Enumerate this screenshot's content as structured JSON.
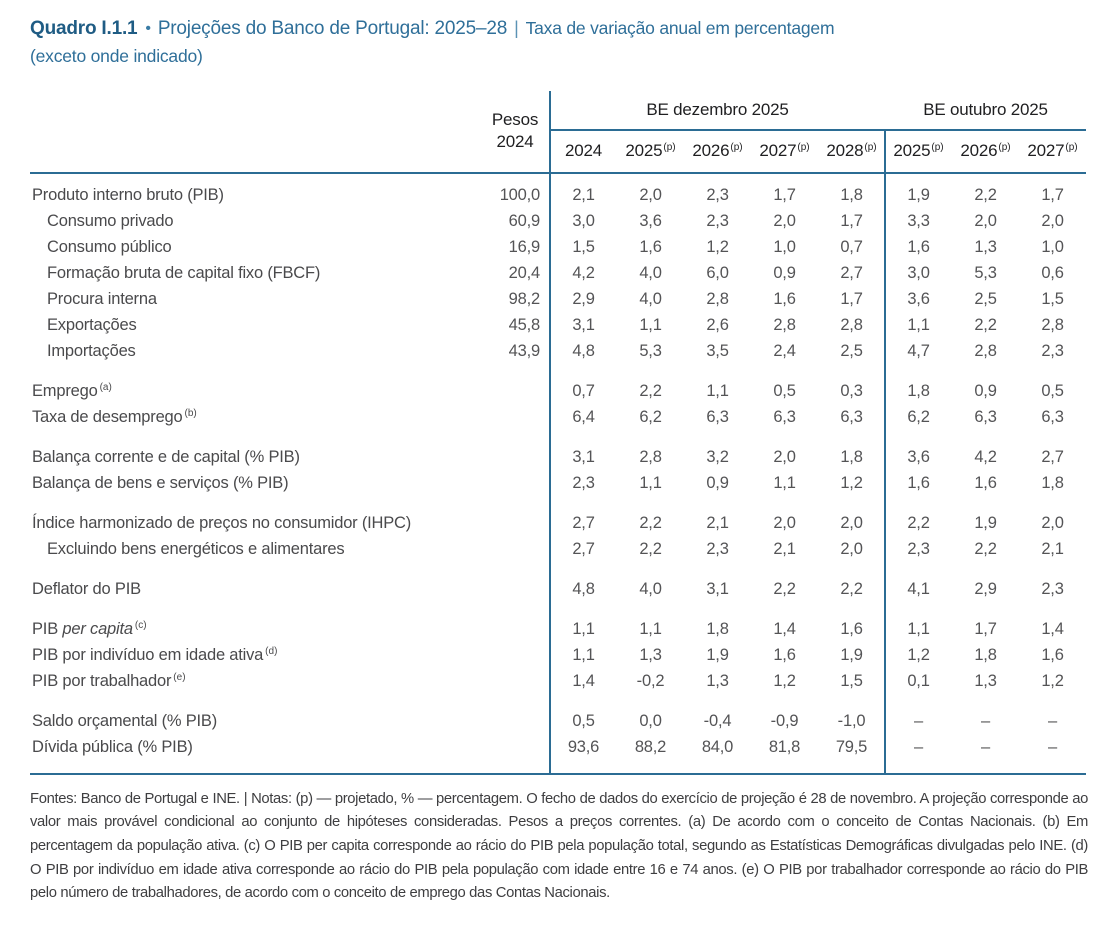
{
  "title": {
    "label": "Quadro I.1.1",
    "bullet": "•",
    "main": "Projeções do Banco de Portugal: 2025–28",
    "pipe": "|",
    "qualifier": "Taxa de variação anual em percentagem",
    "qualifier2": "(exceto onde indicado)"
  },
  "colors": {
    "accent_blue": "#2b6c94",
    "title_blue": "#2f6f99",
    "text_gray": "#545456"
  },
  "table": {
    "header": {
      "pesos_line1": "Pesos",
      "pesos_line2": "2024",
      "groups": [
        {
          "label": "BE dezembro 2025",
          "columns": [
            {
              "year": "2024",
              "sup": ""
            },
            {
              "year": "2025",
              "sup": "(p)"
            },
            {
              "year": "2026",
              "sup": "(p)"
            },
            {
              "year": "2027",
              "sup": "(p)"
            },
            {
              "year": "2028",
              "sup": "(p)"
            }
          ]
        },
        {
          "label": "BE outubro 2025",
          "columns": [
            {
              "year": "2025",
              "sup": "(p)"
            },
            {
              "year": "2026",
              "sup": "(p)"
            },
            {
              "year": "2027",
              "sup": "(p)"
            }
          ]
        }
      ]
    },
    "rows": [
      {
        "label": "Produto interno bruto (PIB)",
        "pesos": "100,0",
        "dez": [
          "2,1",
          "2,0",
          "2,3",
          "1,7",
          "1,8"
        ],
        "out": [
          "1,9",
          "2,2",
          "1,7"
        ]
      },
      {
        "label": "Consumo privado",
        "indent": true,
        "pesos": "60,9",
        "dez": [
          "3,0",
          "3,6",
          "2,3",
          "2,0",
          "1,7"
        ],
        "out": [
          "3,3",
          "2,0",
          "2,0"
        ]
      },
      {
        "label": "Consumo público",
        "indent": true,
        "pesos": "16,9",
        "dez": [
          "1,5",
          "1,6",
          "1,2",
          "1,0",
          "0,7"
        ],
        "out": [
          "1,6",
          "1,3",
          "1,0"
        ]
      },
      {
        "label": "Formação bruta de capital fixo (FBCF)",
        "indent": true,
        "pesos": "20,4",
        "dez": [
          "4,2",
          "4,0",
          "6,0",
          "0,9",
          "2,7"
        ],
        "out": [
          "3,0",
          "5,3",
          "0,6"
        ]
      },
      {
        "label": "Procura interna",
        "indent": true,
        "pesos": "98,2",
        "dez": [
          "2,9",
          "4,0",
          "2,8",
          "1,6",
          "1,7"
        ],
        "out": [
          "3,6",
          "2,5",
          "1,5"
        ]
      },
      {
        "label": "Exportações",
        "indent": true,
        "pesos": "45,8",
        "dez": [
          "3,1",
          "1,1",
          "2,6",
          "2,8",
          "2,8"
        ],
        "out": [
          "1,1",
          "2,2",
          "2,8"
        ]
      },
      {
        "label": "Importações",
        "indent": true,
        "pesos": "43,9",
        "dez": [
          "4,8",
          "5,3",
          "3,5",
          "2,4",
          "2,5"
        ],
        "out": [
          "4,7",
          "2,8",
          "2,3"
        ]
      },
      {
        "label": "Emprego",
        "sup": "(a)",
        "gap": true,
        "pesos": "",
        "dez": [
          "0,7",
          "2,2",
          "1,1",
          "0,5",
          "0,3"
        ],
        "out": [
          "1,8",
          "0,9",
          "0,5"
        ]
      },
      {
        "label": "Taxa de desemprego",
        "sup": "(b)",
        "pesos": "",
        "dez": [
          "6,4",
          "6,2",
          "6,3",
          "6,3",
          "6,3"
        ],
        "out": [
          "6,2",
          "6,3",
          "6,3"
        ]
      },
      {
        "label": "Balança corrente e de capital (% PIB)",
        "gap": true,
        "pesos": "",
        "dez": [
          "3,1",
          "2,8",
          "3,2",
          "2,0",
          "1,8"
        ],
        "out": [
          "3,6",
          "4,2",
          "2,7"
        ]
      },
      {
        "label": "Balança de bens e serviços (% PIB)",
        "pesos": "",
        "dez": [
          "2,3",
          "1,1",
          "0,9",
          "1,1",
          "1,2"
        ],
        "out": [
          "1,6",
          "1,6",
          "1,8"
        ]
      },
      {
        "label": "Índice harmonizado de preços no consumidor (IHPC)",
        "gap": true,
        "pesos": "",
        "dez": [
          "2,7",
          "2,2",
          "2,1",
          "2,0",
          "2,0"
        ],
        "out": [
          "2,2",
          "1,9",
          "2,0"
        ]
      },
      {
        "label": "Excluindo bens energéticos e alimentares",
        "indent": true,
        "pesos": "",
        "dez": [
          "2,7",
          "2,2",
          "2,3",
          "2,1",
          "2,0"
        ],
        "out": [
          "2,3",
          "2,2",
          "2,1"
        ]
      },
      {
        "label": "Deflator do PIB",
        "gap": true,
        "pesos": "",
        "dez": [
          "4,8",
          "4,0",
          "3,1",
          "2,2",
          "2,2"
        ],
        "out": [
          "4,1",
          "2,9",
          "2,3"
        ]
      },
      {
        "label": "PIB ",
        "italic": "per capita",
        "sup": "(c)",
        "gap": true,
        "pesos": "",
        "dez": [
          "1,1",
          "1,1",
          "1,8",
          "1,4",
          "1,6"
        ],
        "out": [
          "1,1",
          "1,7",
          "1,4"
        ]
      },
      {
        "label": "PIB por indivíduo em idade ativa",
        "sup": "(d)",
        "pesos": "",
        "dez": [
          "1,1",
          "1,3",
          "1,9",
          "1,6",
          "1,9"
        ],
        "out": [
          "1,2",
          "1,8",
          "1,6"
        ]
      },
      {
        "label": "PIB por trabalhador",
        "sup": "(e)",
        "pesos": "",
        "dez": [
          "1,4",
          "-0,2",
          "1,3",
          "1,2",
          "1,5"
        ],
        "out": [
          "0,1",
          "1,3",
          "1,2"
        ]
      },
      {
        "label": "Saldo orçamental (% PIB)",
        "gap": true,
        "pesos": "",
        "dez": [
          "0,5",
          "0,0",
          "-0,4",
          "-0,9",
          "-1,0"
        ],
        "out": [
          "–",
          "–",
          "–"
        ]
      },
      {
        "label": "Dívida pública (% PIB)",
        "pesos": "",
        "dez": [
          "93,6",
          "88,2",
          "84,0",
          "81,8",
          "79,5"
        ],
        "out": [
          "–",
          "–",
          "–"
        ]
      }
    ]
  },
  "footnotes": "Fontes: Banco de Portugal e INE.  |  Notas: (p) — projetado, % — percentagem. O fecho de dados do exercício de projeção é 28 de novembro. A projeção corresponde ao valor mais provável condicional ao conjunto de hipóteses consideradas. Pesos a preços correntes. (a) De acordo com o conceito de Contas Nacionais. (b) Em percentagem da população ativa. (c) O PIB per capita corresponde ao rácio do PIB pela população total, segundo as Estatísticas Demográficas divulgadas pelo INE. (d) O PIB por indivíduo em idade ativa corresponde ao rácio do PIB pela população com idade entre 16 e 74 anos. (e) O PIB por trabalhador corresponde ao rácio do PIB pelo número de trabalhadores, de acordo com o conceito de emprego das Contas Nacionais."
}
